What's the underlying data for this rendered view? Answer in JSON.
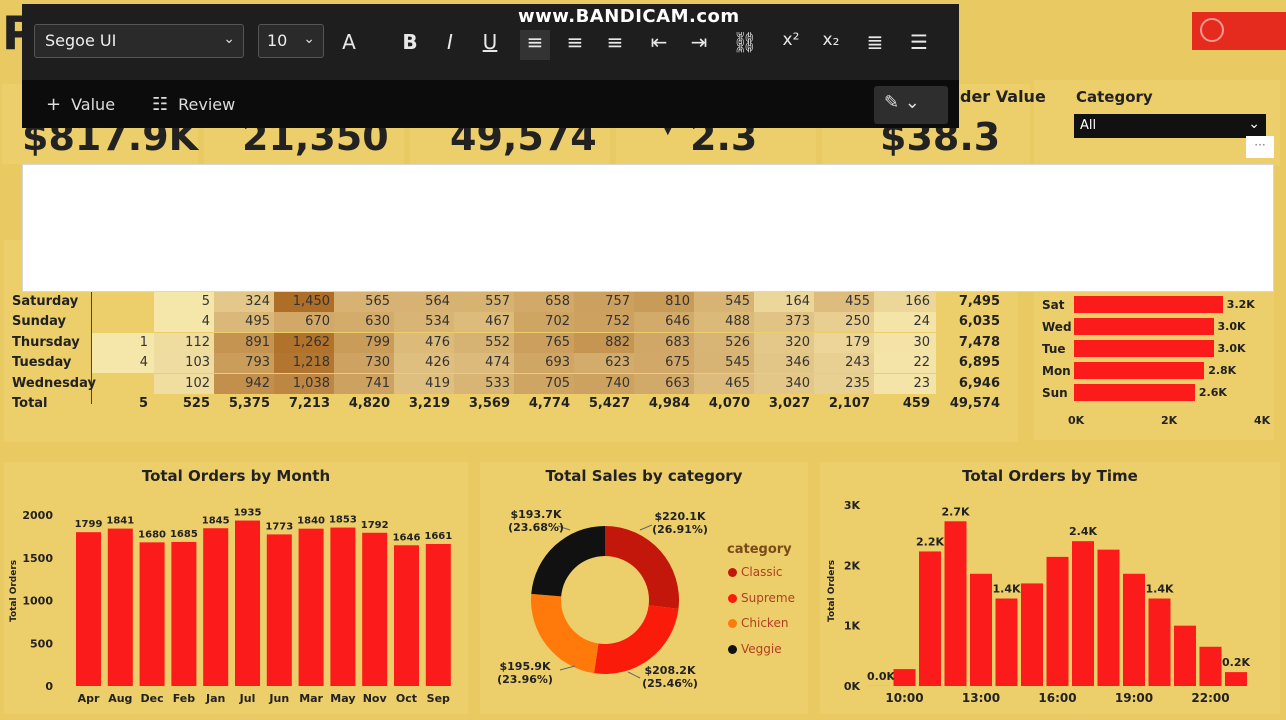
{
  "watermark": "www.BANDICAM.com",
  "page_letter": "P",
  "toolbar": {
    "font": "Segoe UI",
    "size": "10",
    "buttons": [
      "A",
      "B",
      "I",
      "U",
      "≡",
      "≡",
      "≡",
      "⇤",
      "⇥",
      "⛓",
      "x²",
      "x₂",
      "≣",
      "☰"
    ],
    "value_label": "Value",
    "review_label": "Review"
  },
  "kpis": [
    {
      "value": "$817.9K",
      "title": ""
    },
    {
      "value": "21,350",
      "title": ""
    },
    {
      "value": "49,574",
      "title": ""
    },
    {
      "value": "2.3",
      "title": ""
    },
    {
      "value": "$38.3",
      "title": "der Value"
    }
  ],
  "slicer": {
    "title": "Category",
    "selected": "All",
    "more": "···"
  },
  "heat_table": {
    "rows": [
      {
        "day": "Saturday",
        "values": [
          "",
          "5",
          "324",
          "1,450",
          "565",
          "564",
          "557",
          "658",
          "757",
          "810",
          "545",
          "164",
          "455",
          "166"
        ],
        "total": "7,495"
      },
      {
        "day": "Sunday",
        "values": [
          "",
          "4",
          "495",
          "670",
          "630",
          "534",
          "467",
          "702",
          "752",
          "646",
          "488",
          "373",
          "250",
          "24"
        ],
        "total": "6,035"
      },
      {
        "day": "Thursday",
        "values": [
          "1",
          "112",
          "891",
          "1,262",
          "799",
          "476",
          "552",
          "765",
          "882",
          "683",
          "526",
          "320",
          "179",
          "30"
        ],
        "total": "7,478"
      },
      {
        "day": "Tuesday",
        "values": [
          "4",
          "103",
          "793",
          "1,218",
          "730",
          "426",
          "474",
          "693",
          "623",
          "675",
          "545",
          "346",
          "243",
          "22"
        ],
        "total": "6,895"
      },
      {
        "day": "Wednesday",
        "values": [
          "",
          "102",
          "942",
          "1,038",
          "741",
          "419",
          "533",
          "705",
          "740",
          "663",
          "465",
          "340",
          "235",
          "23"
        ],
        "total": "6,946"
      },
      {
        "day": "Total",
        "values": [
          "5",
          "525",
          "5,375",
          "7,213",
          "4,820",
          "3,219",
          "3,569",
          "4,774",
          "5,427",
          "4,984",
          "4,070",
          "3,027",
          "2,107",
          "459"
        ],
        "total": "49,574"
      }
    ]
  },
  "chart_data": [
    {
      "type": "bar",
      "orientation": "horizontal",
      "categories": [
        "Sat",
        "Wed",
        "Tue",
        "Mon",
        "Sun"
      ],
      "values": [
        3200,
        3000,
        3000,
        2800,
        2600
      ],
      "labels": [
        "3.2K",
        "3.0K",
        "3.0K",
        "2.8K",
        "2.6K"
      ],
      "xticks": [
        "0K",
        "2K",
        "4K"
      ],
      "xlim": [
        0,
        4000
      ],
      "color": "#fb1b1b"
    },
    {
      "type": "bar",
      "title": "Total Orders by Month",
      "ylabel": "Total Orders",
      "categories": [
        "Apr",
        "Aug",
        "Dec",
        "Feb",
        "Jan",
        "Jul",
        "Jun",
        "Mar",
        "May",
        "Nov",
        "Oct",
        "Sep"
      ],
      "values": [
        1799,
        1841,
        1680,
        1685,
        1845,
        1935,
        1773,
        1840,
        1853,
        1792,
        1646,
        1661
      ],
      "yticks": [
        "0",
        "500",
        "1000",
        "1500",
        "2000"
      ],
      "ylim": [
        0,
        2000
      ],
      "color": "#fb1b1b"
    },
    {
      "type": "pie",
      "title": "Total Sales by category",
      "legend_title": "category",
      "slices": [
        {
          "name": "Classic",
          "value": 220.1,
          "label": "$220.1K",
          "pct": "(26.91%)",
          "color": "#c4170c"
        },
        {
          "name": "Supreme",
          "value": 208.2,
          "label": "$208.2K",
          "pct": "(25.46%)",
          "color": "#fb1b0b"
        },
        {
          "name": "Chicken",
          "value": 195.9,
          "label": "$195.9K",
          "pct": "(23.96%)",
          "color": "#ff7a0a"
        },
        {
          "name": "Veggie",
          "value": 193.7,
          "label": "$193.7K",
          "pct": "(23.68%)",
          "color": "#111111"
        }
      ]
    },
    {
      "type": "bar",
      "title": "Total Orders by Time",
      "ylabel": "Total Orders",
      "x": [
        9,
        10,
        11,
        12,
        13,
        14,
        15,
        16,
        17,
        18,
        19,
        20,
        21,
        22,
        23
      ],
      "values": [
        1,
        280,
        2230,
        2730,
        1860,
        1450,
        1700,
        2140,
        2400,
        2260,
        1860,
        1450,
        1000,
        650,
        230
      ],
      "bar_labels": [
        "0.0K",
        "",
        "2.2K",
        "2.7K",
        "",
        "1.4K",
        "",
        "",
        "2.4K",
        "",
        "",
        "1.4K",
        "",
        "",
        "0.2K"
      ],
      "yticks": [
        "0K",
        "1K",
        "2K",
        "3K"
      ],
      "xticks": [
        "10:00",
        "13:00",
        "16:00",
        "19:00",
        "22:00"
      ],
      "ylim": [
        0,
        3000
      ],
      "color": "#fb1b1b"
    }
  ]
}
